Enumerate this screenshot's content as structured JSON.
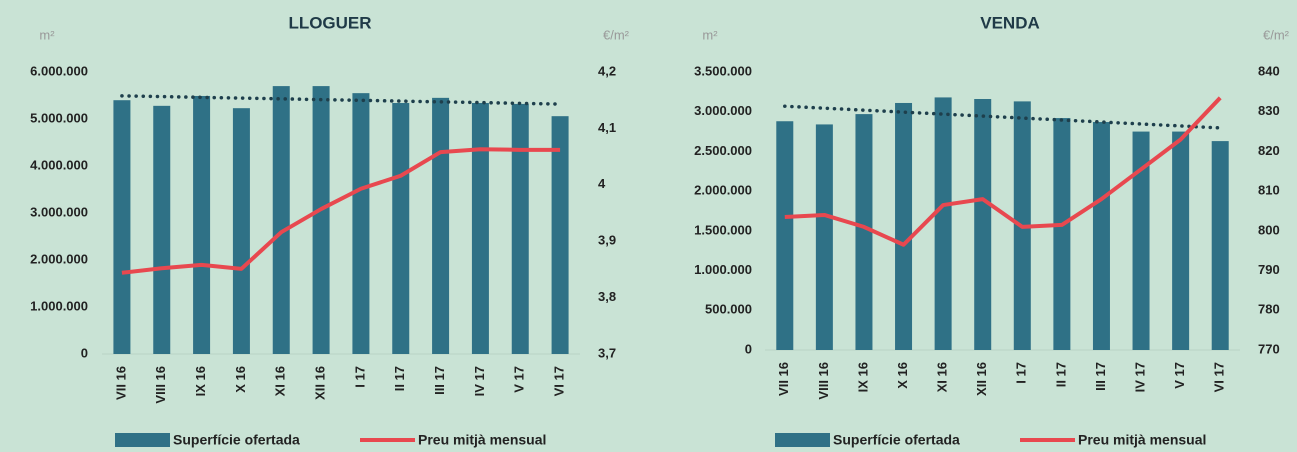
{
  "chart_data": [
    {
      "type": "bar_line",
      "title": "LLOGUER",
      "y_label": "m²",
      "y2_label": "€/m²",
      "categories": [
        "VII 16",
        "VIII 16",
        "IX 16",
        "X 16",
        "XI 16",
        "XII 16",
        "I 17",
        "II 17",
        "III 17",
        "IV 17",
        "V 17",
        "VI 17"
      ],
      "series": [
        {
          "name": "Superfície ofertada",
          "color": "#2f7186",
          "kind": "bar",
          "values": [
            5400000,
            5280000,
            5490000,
            5230000,
            5700000,
            5700000,
            5550000,
            5340000,
            5450000,
            5340000,
            5320000,
            5060000
          ]
        },
        {
          "name": "Preu mitjà mensual",
          "color": "#e8484f",
          "kind": "line",
          "axis": "y2",
          "values": [
            3.844,
            3.852,
            3.858,
            3.851,
            3.916,
            3.957,
            3.993,
            4.016,
            4.058,
            4.063,
            4.062,
            4.062
          ]
        }
      ],
      "trendline": true,
      "legend": "bottom",
      "ylim": [
        0,
        6000000
      ],
      "yticks": [
        0,
        {
          "value": 1000000,
          "label": "1.000.000"
        },
        {
          "value": 2000000,
          "label": "2.000.000"
        },
        {
          "value": 3000000,
          "label": "3.000.000"
        },
        {
          "value": 4000000,
          "label": "4.000.000"
        },
        {
          "value": 5000000,
          "label": "5.000.000"
        },
        {
          "value": 6000000,
          "label": "6.000.000"
        }
      ],
      "y2lim": [
        3.7,
        4.2
      ],
      "y2ticks": [
        {
          "value": 3.7,
          "label": "3,7"
        },
        {
          "value": 3.8,
          "label": "3,8"
        },
        {
          "value": 3.9,
          "label": "3,9"
        },
        4,
        {
          "value": 4.1,
          "label": "4,1"
        },
        {
          "value": 4.2,
          "label": "4,2"
        }
      ]
    },
    {
      "type": "bar_line",
      "title": "VENDA",
      "y_label": "m²",
      "y2_label": "€/m²",
      "categories": [
        "VII 16",
        "VIII 16",
        "IX 16",
        "X 16",
        "XI 16",
        "XII 16",
        "I 17",
        "II 17",
        "III 17",
        "IV 17",
        "V 17",
        "VI 17"
      ],
      "series": [
        {
          "name": "Superfície ofertada",
          "color": "#2f7186",
          "kind": "bar",
          "values": [
            2880000,
            2840000,
            2970000,
            3110000,
            3180000,
            3160000,
            3130000,
            2920000,
            2870000,
            2750000,
            2750000,
            2630000
          ]
        },
        {
          "name": "Preu mitjà mensual",
          "color": "#e8484f",
          "kind": "line",
          "axis": "y2",
          "values": [
            803.5,
            804,
            801,
            796.5,
            806.5,
            808,
            801,
            801.5,
            808,
            815.5,
            823,
            833.5
          ]
        }
      ],
      "trendline": true,
      "legend": "bottom",
      "ylim": [
        0,
        3500000
      ],
      "yticks": [
        0,
        {
          "value": 500000,
          "label": "500.000"
        },
        {
          "value": 1000000,
          "label": "1.000.000"
        },
        {
          "value": 1500000,
          "label": "1.500.000"
        },
        {
          "value": 2000000,
          "label": "2.000.000"
        },
        {
          "value": 2500000,
          "label": "2.500.000"
        },
        {
          "value": 3000000,
          "label": "3.000.000"
        },
        {
          "value": 3500000,
          "label": "3.500.000"
        }
      ],
      "y2lim": [
        770,
        840
      ],
      "y2ticks": [
        770,
        780,
        790,
        800,
        810,
        820,
        830,
        840
      ]
    }
  ]
}
